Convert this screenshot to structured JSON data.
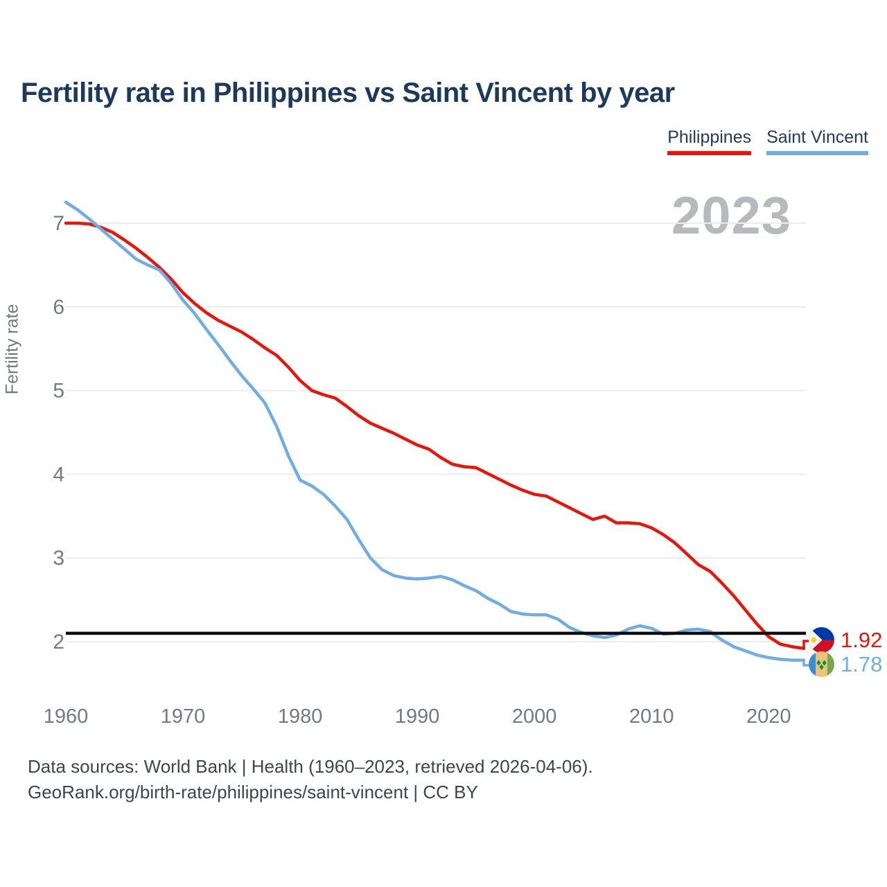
{
  "header": {
    "title": "Fertility rate in Philippines vs Saint Vincent by year"
  },
  "legend": [
    {
      "label": "Philippines",
      "color": "#e9140a"
    },
    {
      "label": "Saint Vincent",
      "color": "#6fade4"
    }
  ],
  "watermark": "2023",
  "chart_data": {
    "type": "line",
    "title": "Fertility rate in Philippines vs Saint Vincent by year",
    "xlabel": "",
    "ylabel": "Fertility rate",
    "xticks": [
      1960,
      1970,
      1980,
      1990,
      2000,
      2010,
      2020
    ],
    "yticks": [
      2,
      3,
      4,
      5,
      6,
      7
    ],
    "ylim": [
      1.6,
      7.4
    ],
    "grid": "horizontal",
    "legend_position": "top-right",
    "years": [
      1960,
      1961,
      1962,
      1963,
      1964,
      1965,
      1966,
      1967,
      1968,
      1969,
      1970,
      1971,
      1972,
      1973,
      1974,
      1975,
      1976,
      1977,
      1978,
      1979,
      1980,
      1981,
      1982,
      1983,
      1984,
      1985,
      1986,
      1987,
      1988,
      1989,
      1990,
      1991,
      1992,
      1993,
      1994,
      1995,
      1996,
      1997,
      1998,
      1999,
      2000,
      2001,
      2002,
      2003,
      2004,
      2005,
      2006,
      2007,
      2008,
      2009,
      2010,
      2011,
      2012,
      2013,
      2014,
      2015,
      2016,
      2017,
      2018,
      2019,
      2020,
      2021,
      2022,
      2023
    ],
    "series": [
      {
        "name": "Philippines",
        "color": "#e9140a",
        "end_label": "1.92",
        "end_value": 1.92,
        "flag_icon": "philippines-flag-icon",
        "values": [
          7.0,
          7.0,
          6.99,
          6.95,
          6.89,
          6.8,
          6.7,
          6.59,
          6.47,
          6.33,
          6.17,
          6.04,
          5.93,
          5.84,
          5.77,
          5.7,
          5.61,
          5.51,
          5.42,
          5.28,
          5.12,
          5.0,
          4.95,
          4.91,
          4.81,
          4.7,
          4.61,
          4.55,
          4.49,
          4.42,
          4.35,
          4.3,
          4.2,
          4.12,
          4.09,
          4.08,
          4.01,
          3.94,
          3.87,
          3.81,
          3.76,
          3.74,
          3.67,
          3.6,
          3.53,
          3.46,
          3.5,
          3.42,
          3.42,
          3.41,
          3.36,
          3.28,
          3.18,
          3.05,
          2.92,
          2.84,
          2.7,
          2.55,
          2.38,
          2.21,
          2.06,
          1.97,
          1.94,
          1.92
        ]
      },
      {
        "name": "Saint Vincent",
        "color": "#6fade4",
        "end_label": "1.78",
        "end_value": 1.78,
        "flag_icon": "saint-vincent-flag-icon",
        "values": [
          7.25,
          7.16,
          7.05,
          6.93,
          6.81,
          6.69,
          6.57,
          6.5,
          6.44,
          6.28,
          6.08,
          5.92,
          5.73,
          5.55,
          5.36,
          5.18,
          5.02,
          4.85,
          4.57,
          4.22,
          3.93,
          3.86,
          3.76,
          3.62,
          3.46,
          3.22,
          3.0,
          2.86,
          2.79,
          2.76,
          2.75,
          2.76,
          2.78,
          2.74,
          2.67,
          2.61,
          2.52,
          2.45,
          2.36,
          2.33,
          2.32,
          2.32,
          2.27,
          2.17,
          2.11,
          2.07,
          2.05,
          2.08,
          2.15,
          2.19,
          2.16,
          2.09,
          2.1,
          2.14,
          2.15,
          2.12,
          2.02,
          1.94,
          1.89,
          1.84,
          1.81,
          1.79,
          1.78,
          1.78
        ]
      }
    ],
    "reference_line": {
      "value": 2.1,
      "color": "#0d0d0d"
    }
  },
  "footer": {
    "line1": "Data sources: World Bank | Health (1960–2023, retrieved 2026-04-06).",
    "line2": "GeoRank.org/birth-rate/philippines/saint-vincent | CC BY"
  },
  "colors": {
    "title_text": "#1e3a5a",
    "axis_text": "#73797f",
    "gridline": "#ececec",
    "watermark_text": "#b7babd",
    "footer_text": "#3f4448"
  }
}
